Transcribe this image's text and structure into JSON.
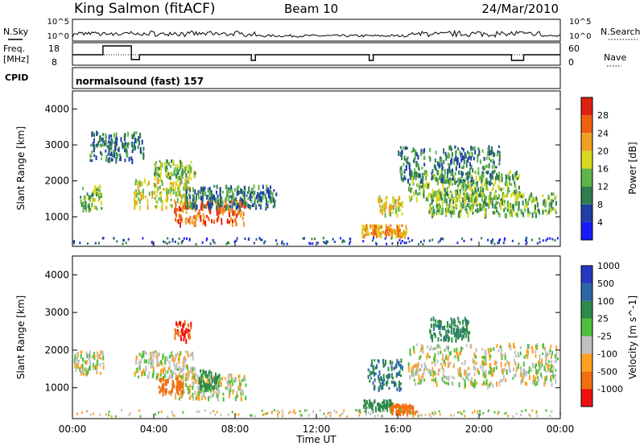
{
  "header": {
    "station": "King Salmon (fitACF)",
    "beam": "Beam 10",
    "date": "24/Mar/2010"
  },
  "aux": {
    "nsky_label": "N.Sky",
    "nsearch_label": "N.Search",
    "freq_label_1": "Freq.",
    "freq_label_2": "[MHz]",
    "nave_label": "Nave",
    "cpid_label": "CPID",
    "cpid_text": "normalsound (fast) 157",
    "noise_ticks": [
      "10^5",
      "10^0"
    ],
    "noise_ticks_right": [
      "10^5",
      "10^0"
    ],
    "freq_ticks": [
      "18",
      "8"
    ],
    "nave_ticks": [
      "60",
      "0"
    ]
  },
  "power_scale": {
    "label": "Power [dB]",
    "ticks": [
      "4",
      "8",
      "12",
      "16",
      "20",
      "24",
      "28"
    ],
    "colors": [
      "#1a1aff",
      "#1e3fa6",
      "#2e7d4f",
      "#5fb34a",
      "#d8d820",
      "#f0a020",
      "#f06010",
      "#e02010"
    ]
  },
  "velocity_scale": {
    "label": "Velocity [m s^-1]",
    "ticks": [
      "1000",
      "500",
      "100",
      "25",
      "-25",
      "-100",
      "-500",
      "-1000"
    ],
    "colors": [
      "#2438c0",
      "#2a66a8",
      "#2e8a4a",
      "#4ebf3a",
      "#c0c0c0",
      "#ffa020",
      "#f07010",
      "#f01010"
    ]
  },
  "x_ticks": [
    "00:00",
    "04:00",
    "08:00",
    "12:00",
    "16:00",
    "20:00",
    "00:00"
  ],
  "xlabel": "Time UT",
  "ylabel": "Slant Range [km]",
  "chart_data": [
    {
      "type": "heatmap",
      "title": "Power",
      "ylabel": "Slant Range [km]",
      "xlabel": "Time UT",
      "x_range_hours": [
        0,
        24
      ],
      "y_range_km": [
        180,
        4500
      ],
      "y_ticks": [
        1000,
        2000,
        3000,
        4000
      ],
      "colorbar": "Power [dB]",
      "regions": [
        {
          "t0": 0.3,
          "t1": 1.4,
          "r0": 1250,
          "r1": 1900,
          "level": 12
        },
        {
          "t0": 3.0,
          "t1": 5.8,
          "r0": 1300,
          "r1": 2100,
          "level": 16
        },
        {
          "t0": 5.0,
          "t1": 8.5,
          "r0": 850,
          "r1": 1500,
          "level": 22
        },
        {
          "t0": 4.0,
          "t1": 6.0,
          "r0": 2100,
          "r1": 2600,
          "level": 10
        },
        {
          "t0": 5.5,
          "t1": 10.0,
          "r0": 1300,
          "r1": 1900,
          "level": 9
        },
        {
          "t0": 14.2,
          "t1": 16.4,
          "r0": 500,
          "r1": 800,
          "level": 18
        },
        {
          "t0": 15.0,
          "t1": 16.2,
          "r0": 1100,
          "r1": 1600,
          "level": 16
        },
        {
          "t0": 16.5,
          "t1": 22.0,
          "r0": 1500,
          "r1": 2300,
          "level": 11
        },
        {
          "t0": 17.5,
          "t1": 23.8,
          "r0": 1100,
          "r1": 1700,
          "level": 13
        },
        {
          "t0": 16.0,
          "t1": 21.0,
          "r0": 2000,
          "r1": 3000,
          "level": 7
        },
        {
          "t0": 0.8,
          "t1": 3.5,
          "r0": 2600,
          "r1": 3400,
          "level": 6
        }
      ]
    },
    {
      "type": "heatmap",
      "title": "Velocity",
      "ylabel": "Slant Range [km]",
      "xlabel": "Time UT",
      "x_range_hours": [
        0,
        24
      ],
      "y_range_km": [
        180,
        4500
      ],
      "y_ticks": [
        1000,
        2000,
        3000,
        4000
      ],
      "colorbar": "Velocity [m s^-1]",
      "regions": [
        {
          "t0": 0.0,
          "t1": 1.5,
          "r0": 1400,
          "r1": 2000,
          "velocity": 0
        },
        {
          "t0": 3.0,
          "t1": 6.0,
          "r0": 1300,
          "r1": 2000,
          "velocity": 0
        },
        {
          "t0": 5.0,
          "t1": 8.5,
          "r0": 750,
          "r1": 1400,
          "velocity": 0
        },
        {
          "t0": 6.2,
          "t1": 7.2,
          "r0": 1000,
          "r1": 1500,
          "velocity": 150
        },
        {
          "t0": 4.2,
          "t1": 5.4,
          "r0": 900,
          "r1": 1300,
          "velocity": -150
        },
        {
          "t0": 14.5,
          "t1": 16.2,
          "r0": 1000,
          "r1": 1800,
          "velocity": 300
        },
        {
          "t0": 14.3,
          "t1": 15.7,
          "r0": 450,
          "r1": 700,
          "velocity": 150
        },
        {
          "t0": 15.6,
          "t1": 16.9,
          "r0": 350,
          "r1": 600,
          "velocity": -150
        },
        {
          "t0": 16.5,
          "t1": 23.9,
          "r0": 1100,
          "r1": 2200,
          "velocity": 0
        },
        {
          "t0": 17.5,
          "t1": 19.5,
          "r0": 2300,
          "r1": 2900,
          "velocity": 250
        },
        {
          "t0": 5.0,
          "t1": 5.8,
          "r0": 2300,
          "r1": 2800,
          "velocity": -300
        }
      ]
    }
  ]
}
